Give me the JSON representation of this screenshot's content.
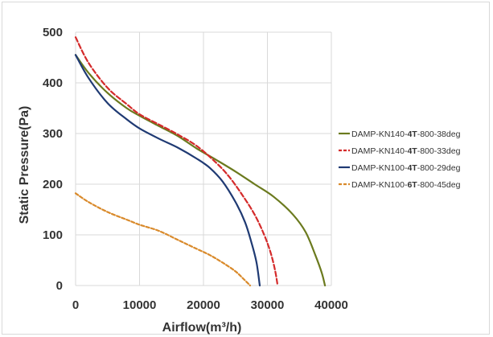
{
  "chart_data": {
    "type": "line",
    "title": "",
    "xlabel": "Airflow(m³/h)",
    "ylabel": "Static Pressure(Pa)",
    "xlim": [
      0,
      40000
    ],
    "ylim": [
      0,
      500
    ],
    "x_ticks": [
      "0",
      "10000",
      "20000",
      "30000",
      "40000"
    ],
    "y_ticks": [
      "0",
      "100",
      "200",
      "300",
      "400",
      "500"
    ],
    "grid": true,
    "legend_position": "right",
    "series": [
      {
        "name": "DAMP-KN140-4T-800-38deg",
        "name_parts": [
          "DAMP-KN140-",
          "4T",
          "-800-38deg"
        ],
        "color": "#6b7a1e",
        "style": "solid",
        "points": [
          [
            0,
            455
          ],
          [
            2000,
            420
          ],
          [
            5000,
            380
          ],
          [
            8000,
            350
          ],
          [
            10000,
            335
          ],
          [
            13000,
            315
          ],
          [
            16000,
            295
          ],
          [
            19000,
            270
          ],
          [
            22000,
            248
          ],
          [
            25000,
            225
          ],
          [
            28000,
            200
          ],
          [
            31000,
            175
          ],
          [
            34000,
            140
          ],
          [
            36000,
            105
          ],
          [
            37500,
            60
          ],
          [
            38500,
            25
          ],
          [
            39000,
            0
          ]
        ]
      },
      {
        "name": "DAMP-KN140-4T-800-33deg",
        "name_parts": [
          "DAMP-KN140-",
          "4T",
          "-800-33deg"
        ],
        "color": "#d42a2a",
        "style": "dashed",
        "points": [
          [
            0,
            490
          ],
          [
            2000,
            440
          ],
          [
            5000,
            390
          ],
          [
            8000,
            358
          ],
          [
            10000,
            338
          ],
          [
            13000,
            318
          ],
          [
            16000,
            298
          ],
          [
            19000,
            275
          ],
          [
            22000,
            242
          ],
          [
            24000,
            215
          ],
          [
            26000,
            180
          ],
          [
            28000,
            140
          ],
          [
            29500,
            100
          ],
          [
            30500,
            65
          ],
          [
            31200,
            30
          ],
          [
            31600,
            0
          ]
        ]
      },
      {
        "name": "DAMP-KN100-4T-800-29deg",
        "name_parts": [
          "DAMP-KN100-",
          "4T",
          "-800-29deg"
        ],
        "color": "#1f3a73",
        "style": "solid",
        "points": [
          [
            0,
            455
          ],
          [
            2000,
            410
          ],
          [
            5000,
            360
          ],
          [
            8000,
            328
          ],
          [
            10000,
            310
          ],
          [
            13000,
            290
          ],
          [
            16000,
            272
          ],
          [
            19000,
            250
          ],
          [
            21000,
            232
          ],
          [
            23000,
            205
          ],
          [
            25000,
            165
          ],
          [
            26500,
            125
          ],
          [
            27500,
            85
          ],
          [
            28300,
            45
          ],
          [
            28800,
            0
          ]
        ]
      },
      {
        "name": "DAMP-KN100-6T-800-45deg",
        "name_parts": [
          "DAMP-KN100-",
          "6T",
          "-800-45deg"
        ],
        "color": "#d98a2b",
        "style": "dashed",
        "points": [
          [
            0,
            182
          ],
          [
            2000,
            165
          ],
          [
            5000,
            145
          ],
          [
            8000,
            130
          ],
          [
            10000,
            120
          ],
          [
            13000,
            108
          ],
          [
            16000,
            90
          ],
          [
            19000,
            72
          ],
          [
            21000,
            60
          ],
          [
            23000,
            45
          ],
          [
            25000,
            28
          ],
          [
            26500,
            10
          ],
          [
            27300,
            0
          ]
        ]
      }
    ]
  }
}
